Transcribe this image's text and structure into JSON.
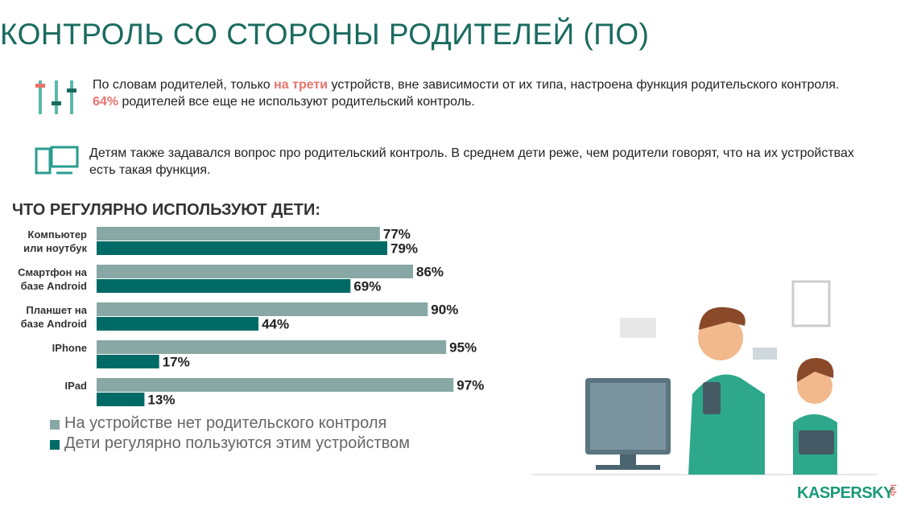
{
  "slide": {
    "title": "КОНТРОЛЬ СО СТОРОНЫ РОДИТЕЛЕЙ (ПО)",
    "p1": [
      "По словам родителей, только ",
      "на трети",
      " устройств, вне зависимости от их типа, настроена функция родительского контроля."
    ],
    "p2": [
      "64%",
      " родителей все еще не используют родительский контроль."
    ],
    "p3": "Детям также задавался вопрос про родительский контроль. В среднем дети реже, чем родители говорят, что на их устройствах есть такая функция.",
    "logo": "KASPERSKY",
    "logo_sub": "lab"
  },
  "chart_data": {
    "type": "barh",
    "title": "ЧТО РЕГУЛЯРНО ИСПОЛЬЗУЮТ ДЕТИ:",
    "categories": [
      "Компьютер\nили ноутбук",
      "Смартфон на\nбазе Android",
      "Планшет на\nбазе Android",
      "IPhone",
      "IPad"
    ],
    "series": [
      {
        "name": "На устройстве нет родительского контроля",
        "color": "#87a8a4",
        "values": [
          77,
          86,
          90,
          95,
          97
        ],
        "value_labels": [
          "77%",
          "86%",
          "90%",
          "95%",
          "97%"
        ]
      },
      {
        "name": "Дети регулярно пользуются этим устройством",
        "color": "#006b66",
        "values": [
          79,
          69,
          44,
          17,
          13
        ],
        "value_labels": [
          "79%",
          "69%",
          "44%",
          "17%",
          "13%"
        ]
      }
    ],
    "xlim": [
      0,
      100
    ]
  }
}
